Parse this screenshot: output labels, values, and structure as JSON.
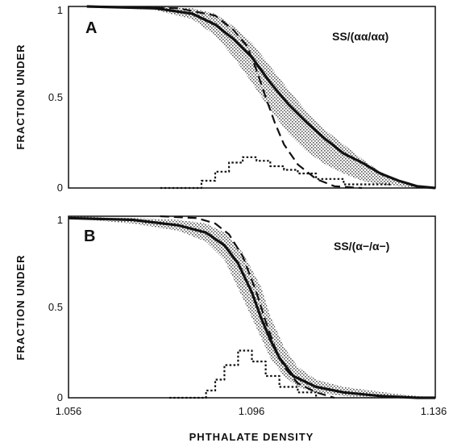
{
  "colors": {
    "ink": "#111111",
    "band": "#8a8a8a"
  },
  "xlabel": "PHTHALATE DENSITY",
  "x_ticks": [
    "1.056",
    "1.096",
    "1.136"
  ],
  "y_ticks": [
    "0",
    "0.5",
    "1"
  ],
  "chart_data": [
    {
      "type": "line",
      "panel": "A",
      "annotation": "SS/(αα/αα)",
      "ylabel": "FRACTION UNDER",
      "xlim": [
        1.056,
        1.136
      ],
      "ylim": [
        0,
        1
      ],
      "shaded_band": {
        "x": [
          1.06,
          1.075,
          1.083,
          1.088,
          1.092,
          1.096,
          1.1,
          1.104,
          1.108,
          1.112,
          1.116,
          1.12,
          1.124,
          1.128,
          1.132,
          1.136
        ],
        "lower": [
          1.0,
          0.98,
          0.93,
          0.84,
          0.72,
          0.58,
          0.43,
          0.3,
          0.2,
          0.13,
          0.08,
          0.04,
          0.02,
          0.01,
          0.0,
          0.0
        ],
        "upper": [
          1.0,
          1.0,
          0.99,
          0.96,
          0.89,
          0.8,
          0.67,
          0.54,
          0.42,
          0.32,
          0.24,
          0.16,
          0.09,
          0.04,
          0.01,
          0.0
        ]
      },
      "series": [
        {
          "style": "solid",
          "x": [
            1.06,
            1.075,
            1.083,
            1.088,
            1.092,
            1.096,
            1.1,
            1.104,
            1.108,
            1.112,
            1.116,
            1.12,
            1.124,
            1.128,
            1.132,
            1.136
          ],
          "y": [
            1.0,
            0.99,
            0.96,
            0.9,
            0.82,
            0.72,
            0.58,
            0.46,
            0.36,
            0.27,
            0.19,
            0.14,
            0.08,
            0.04,
            0.01,
            0.0
          ]
        },
        {
          "style": "dashed",
          "x": [
            1.06,
            1.08,
            1.088,
            1.092,
            1.095,
            1.097,
            1.099,
            1.101,
            1.103,
            1.106,
            1.11,
            1.114,
            1.12
          ],
          "y": [
            1.0,
            0.99,
            0.95,
            0.87,
            0.78,
            0.65,
            0.5,
            0.36,
            0.24,
            0.13,
            0.05,
            0.01,
            0.0
          ]
        },
        {
          "style": "dotted",
          "step": true,
          "x": [
            1.076,
            1.085,
            1.088,
            1.091,
            1.094,
            1.097,
            1.1,
            1.103,
            1.106,
            1.11,
            1.116,
            1.122,
            1.126
          ],
          "y": [
            0.0,
            0.04,
            0.09,
            0.14,
            0.17,
            0.15,
            0.12,
            0.1,
            0.08,
            0.05,
            0.02,
            0.02,
            0.01
          ]
        }
      ]
    },
    {
      "type": "line",
      "panel": "B",
      "annotation": "SS/(α−/α−)",
      "ylabel": "FRACTION UNDER",
      "xlim": [
        1.056,
        1.136
      ],
      "ylim": [
        0,
        1
      ],
      "shaded_band": {
        "x": [
          1.056,
          1.07,
          1.08,
          1.086,
          1.09,
          1.094,
          1.098,
          1.1,
          1.103,
          1.106,
          1.11,
          1.116,
          1.122,
          1.128,
          1.132,
          1.136
        ],
        "lower": [
          0.99,
          0.96,
          0.92,
          0.86,
          0.76,
          0.55,
          0.33,
          0.22,
          0.12,
          0.06,
          0.03,
          0.01,
          0.0,
          0.0,
          0.0,
          0.0
        ],
        "upper": [
          1.0,
          0.99,
          0.98,
          0.96,
          0.91,
          0.8,
          0.61,
          0.45,
          0.28,
          0.17,
          0.1,
          0.06,
          0.04,
          0.02,
          0.01,
          0.0
        ]
      },
      "series": [
        {
          "style": "solid",
          "x": [
            1.056,
            1.07,
            1.08,
            1.086,
            1.09,
            1.093,
            1.096,
            1.098,
            1.1,
            1.102,
            1.105,
            1.11,
            1.116,
            1.124,
            1.132,
            1.136
          ],
          "y": [
            0.99,
            0.98,
            0.95,
            0.91,
            0.84,
            0.74,
            0.58,
            0.44,
            0.32,
            0.22,
            0.12,
            0.06,
            0.03,
            0.01,
            0.0,
            0.0
          ]
        },
        {
          "style": "dashed",
          "x": [
            1.076,
            1.084,
            1.088,
            1.091,
            1.094,
            1.097,
            1.099,
            1.101,
            1.103,
            1.106,
            1.11,
            1.114
          ],
          "y": [
            1.0,
            0.99,
            0.96,
            0.9,
            0.78,
            0.58,
            0.42,
            0.28,
            0.17,
            0.08,
            0.03,
            0.0
          ]
        },
        {
          "style": "dotted",
          "step": true,
          "x": [
            1.078,
            1.086,
            1.088,
            1.09,
            1.093,
            1.096,
            1.099,
            1.102,
            1.106,
            1.11
          ],
          "y": [
            0.0,
            0.04,
            0.1,
            0.18,
            0.26,
            0.2,
            0.12,
            0.06,
            0.03,
            0.0
          ]
        }
      ]
    }
  ]
}
